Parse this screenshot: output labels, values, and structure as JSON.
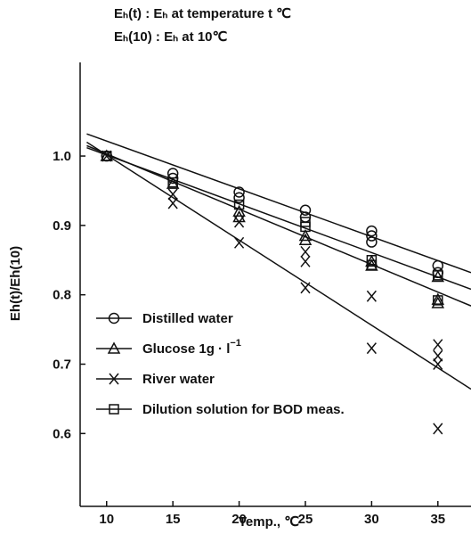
{
  "annotations": {
    "line1": "Eₕ(t) : Eₕ at temperature t ℃",
    "line2": "Eₕ(10) : Eₕ at 10℃"
  },
  "chart_data": {
    "type": "scatter",
    "xlabel": "Temp., ℃",
    "ylabel": "Eh(t)/Eh(10)",
    "xlim": [
      8,
      37.5
    ],
    "ylim": [
      0.495,
      1.135
    ],
    "xticks": [
      10,
      15,
      20,
      25,
      30,
      35
    ],
    "yticks": [
      0.6,
      0.7,
      0.8,
      0.9,
      1.0
    ],
    "xtick_labels": [
      "10",
      "15",
      "20",
      "25",
      "30",
      "35"
    ],
    "ytick_labels": [
      "0.6",
      "0.7",
      "0.8",
      "0.9",
      "1.0"
    ],
    "grid": false,
    "legend_position": "lower-left",
    "series": [
      {
        "name": "Distilled water",
        "marker": "circle",
        "points": [
          [
            10,
            1.0
          ],
          [
            15,
            0.975
          ],
          [
            15,
            0.968
          ],
          [
            20,
            0.948
          ],
          [
            20,
            0.94
          ],
          [
            25,
            0.922
          ],
          [
            25,
            0.912
          ],
          [
            30,
            0.892
          ],
          [
            30,
            0.885
          ],
          [
            30,
            0.876
          ],
          [
            35,
            0.842
          ],
          [
            35,
            0.832
          ]
        ],
        "fit": [
          [
            8.5,
            1.032
          ],
          [
            37.5,
            0.832
          ]
        ]
      },
      {
        "name": "Glucose 1g · l⁻¹",
        "marker": "triangle",
        "points": [
          [
            10,
            1.0
          ],
          [
            15,
            0.96
          ],
          [
            20,
            0.92
          ],
          [
            20,
            0.912
          ],
          [
            25,
            0.885
          ],
          [
            25,
            0.879
          ],
          [
            30,
            0.848
          ],
          [
            30,
            0.842
          ],
          [
            35,
            0.826
          ],
          [
            35,
            0.793
          ],
          [
            35,
            0.788
          ]
        ],
        "fit": [
          [
            8.5,
            1.015
          ],
          [
            37.5,
            0.784
          ]
        ]
      },
      {
        "name": "River water",
        "marker": "x",
        "points": [
          [
            10,
            1.0
          ],
          [
            15,
            0.945
          ],
          [
            15,
            0.932
          ],
          [
            20,
            0.905
          ],
          [
            20,
            0.875
          ],
          [
            25,
            0.862
          ],
          [
            25,
            0.848
          ],
          [
            25,
            0.81
          ],
          [
            30,
            0.798
          ],
          [
            30,
            0.723
          ],
          [
            35,
            0.728
          ],
          [
            35,
            0.712
          ],
          [
            35,
            0.7
          ],
          [
            35,
            0.607
          ]
        ],
        "fit": [
          [
            8.5,
            1.02
          ],
          [
            37.5,
            0.664
          ]
        ]
      },
      {
        "name": "Dilution solution for BOD meas.",
        "marker": "square",
        "points": [
          [
            10,
            1.0
          ],
          [
            15,
            0.962
          ],
          [
            20,
            0.93
          ],
          [
            25,
            0.898
          ],
          [
            25,
            0.905
          ],
          [
            30,
            0.85
          ],
          [
            30,
            0.843
          ],
          [
            35,
            0.828
          ],
          [
            35,
            0.792
          ]
        ],
        "fit": [
          [
            8.5,
            1.012
          ],
          [
            37.5,
            0.808
          ]
        ]
      }
    ],
    "legend": [
      {
        "marker": "circle",
        "label": "Distilled water"
      },
      {
        "marker": "triangle",
        "label": "Glucose 1g · l",
        "sup": "−1"
      },
      {
        "marker": "x",
        "label": "River water"
      },
      {
        "marker": "square",
        "label": "Dilution solution for BOD meas."
      }
    ]
  }
}
